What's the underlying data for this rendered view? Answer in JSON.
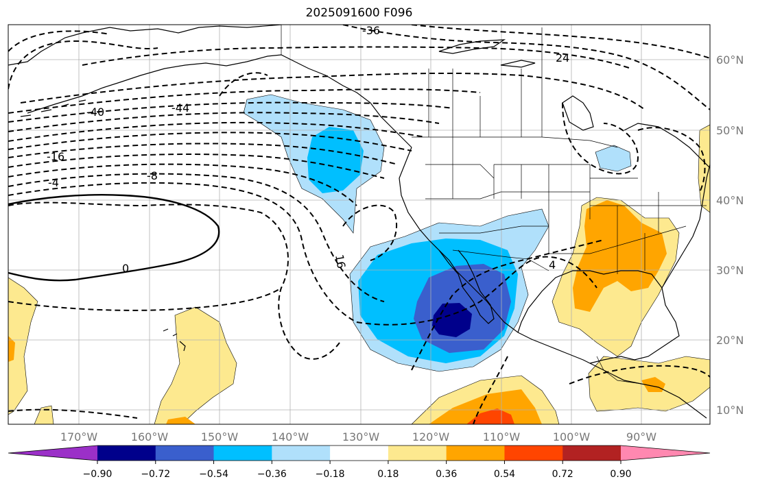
{
  "title": "2025091600 F096",
  "map": {
    "lat_labels": [
      "60°N",
      "50°N",
      "40°N",
      "30°N",
      "20°N",
      "10°N"
    ],
    "lon_labels": [
      "170°W",
      "160°W",
      "150°W",
      "140°W",
      "130°W",
      "120°W",
      "110°W",
      "100°W",
      "90°W"
    ],
    "contour_labels": [
      "-36",
      "24",
      "-40",
      "-44",
      "-16",
      "-8",
      "-4",
      "0",
      "16",
      "4"
    ]
  },
  "colorbar": {
    "ticks": [
      "−0.90",
      "−0.72",
      "−0.54",
      "−0.36",
      "−0.18",
      "0.18",
      "0.36",
      "0.54",
      "0.72",
      "0.90"
    ],
    "colors": [
      "#9b30c8",
      "#00008b",
      "#3a5fcd",
      "#00bfff",
      "#b0e0fb",
      "#ffffff",
      "#fde98f",
      "#ffa500",
      "#ff4500",
      "#b22222",
      "#ff88b0"
    ]
  }
}
